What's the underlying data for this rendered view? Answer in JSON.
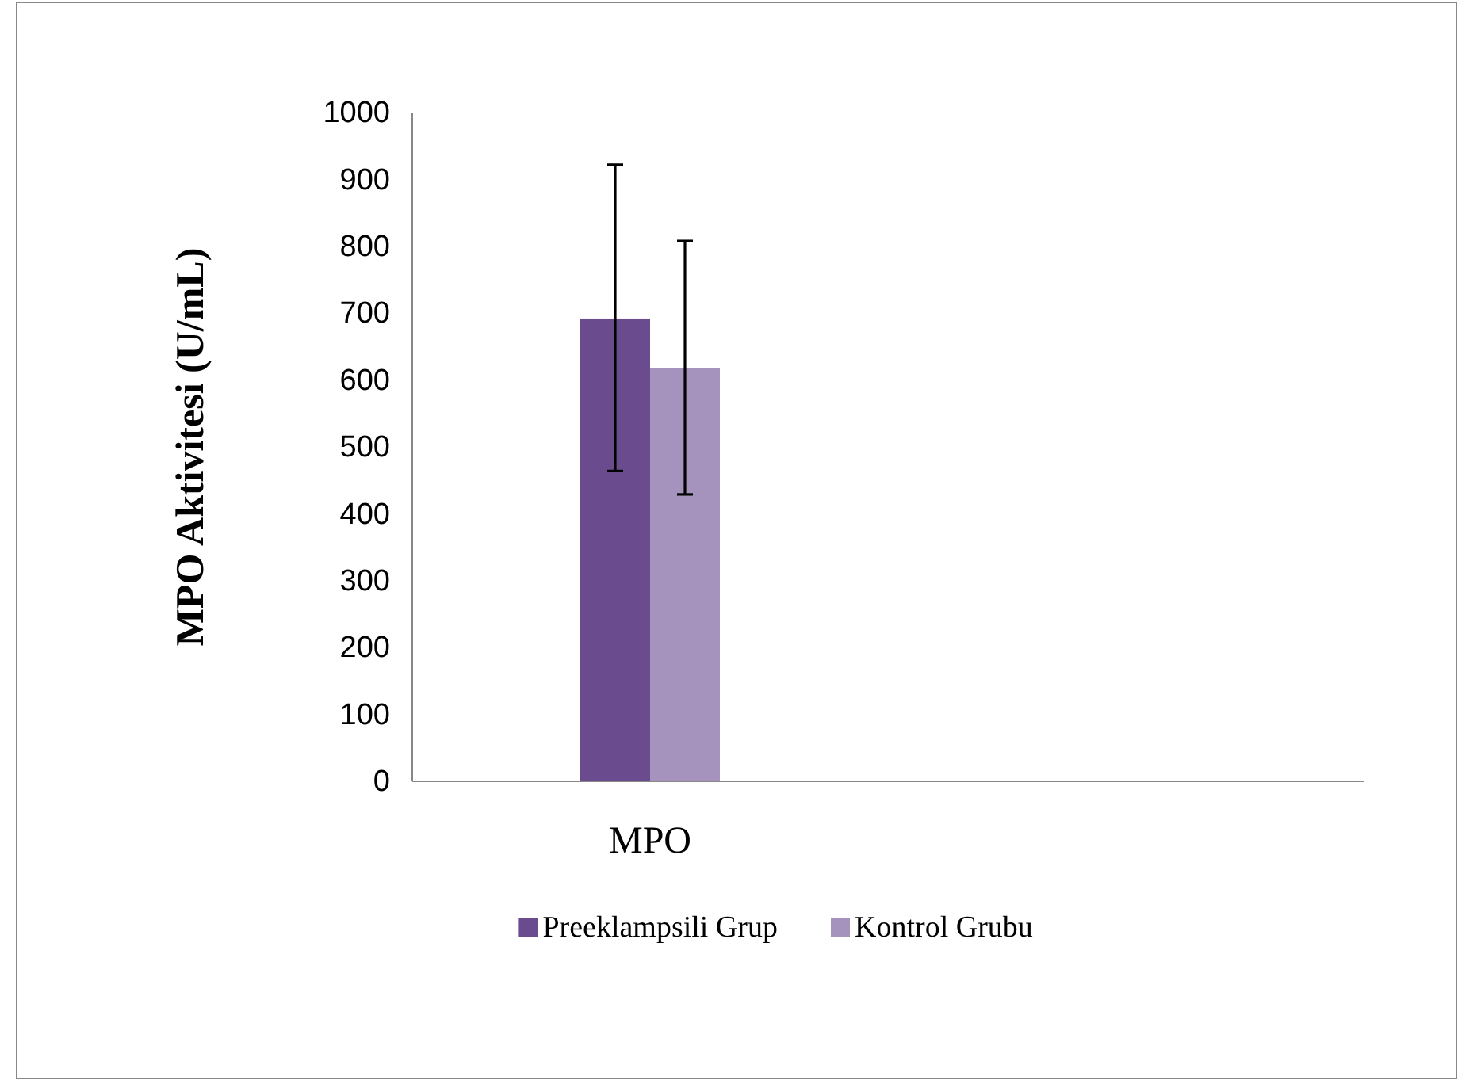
{
  "chart_data": {
    "type": "bar",
    "ylabel": "MPO Aktivitesi (U/mL)",
    "categories": [
      "MPO",
      null
    ],
    "series": [
      {
        "name": "Preeklampsili Grup",
        "color": "#6a4b8e",
        "values": [
          692,
          null
        ],
        "errors": [
          [
            464,
            922
          ],
          null
        ]
      },
      {
        "name": "Kontrol Grubu",
        "color": "#a693bd",
        "values": [
          618,
          null
        ],
        "errors": [
          [
            429,
            808
          ],
          null
        ]
      }
    ],
    "ylim": [
      0,
      1000
    ],
    "yticks": [
      0,
      100,
      200,
      300,
      400,
      500,
      600,
      700,
      800,
      900,
      1000
    ],
    "grid": false,
    "legend": "bottom"
  }
}
